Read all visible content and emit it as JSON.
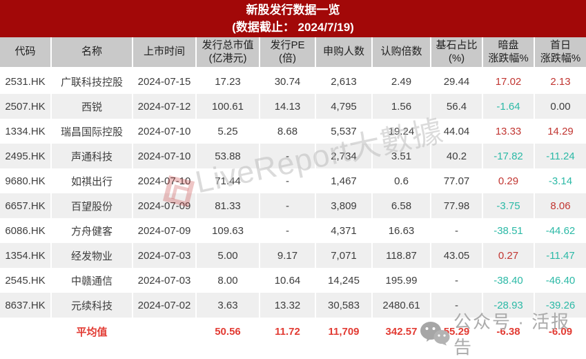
{
  "header": {
    "title": "新股发行数据一览",
    "subtitle": "(数据截止： 2024/7/19)"
  },
  "colors": {
    "accent": "#A20808",
    "positive_red": "#C13531",
    "negative_green": "#2BB9A6",
    "average_red": "#E23B33",
    "header_gray": "#C9C9C9",
    "alt_row_gray": "#EFEFEF"
  },
  "chart_data": {
    "type": "table",
    "title": "新股发行数据一览",
    "as_of": "2024/7/19",
    "columns": [
      {
        "key": "code",
        "label": "代码",
        "label2": ""
      },
      {
        "key": "name",
        "label": "名称",
        "label2": ""
      },
      {
        "key": "list_date",
        "label": "上市时间",
        "label2": ""
      },
      {
        "key": "market_cap",
        "label": "发行总市值",
        "label2": "(亿港元)"
      },
      {
        "key": "pe",
        "label": "发行PE",
        "label2": "(倍)"
      },
      {
        "key": "subscribers",
        "label": "申购人数",
        "label2": ""
      },
      {
        "key": "multiple",
        "label": "认购倍数",
        "label2": ""
      },
      {
        "key": "cornerstone",
        "label": "基石占比",
        "label2": "(%)"
      },
      {
        "key": "grey_market",
        "label": "暗盘",
        "label2": "涨跌幅%"
      },
      {
        "key": "first_day",
        "label": "首日",
        "label2": "涨跌幅%"
      }
    ],
    "rows": [
      {
        "cells": [
          "2531.HK",
          "广联科技控股",
          "2024-07-15",
          "17.23",
          "30.74",
          "2,613",
          "2.49",
          "29.44",
          "17.02",
          "2.13"
        ],
        "tone": [
          "",
          "",
          "",
          "",
          "",
          "",
          "",
          "",
          "pos",
          "pos"
        ]
      },
      {
        "cells": [
          "2507.HK",
          "西锐",
          "2024-07-12",
          "100.61",
          "14.13",
          "4,795",
          "1.56",
          "56.4",
          "-1.64",
          "0.00"
        ],
        "tone": [
          "",
          "",
          "",
          "",
          "",
          "",
          "",
          "",
          "neg",
          ""
        ]
      },
      {
        "cells": [
          "1334.HK",
          "瑞昌国际控股",
          "2024-07-10",
          "5.25",
          "8.68",
          "5,537",
          "19.24",
          "44.04",
          "13.33",
          "14.29"
        ],
        "tone": [
          "",
          "",
          "",
          "",
          "",
          "",
          "",
          "",
          "pos",
          "pos"
        ]
      },
      {
        "cells": [
          "2495.HK",
          "声通科技",
          "2024-07-10",
          "53.88",
          "-",
          "2,734",
          "3.51",
          "40.2",
          "-17.82",
          "-11.24"
        ],
        "tone": [
          "",
          "",
          "",
          "",
          "",
          "",
          "",
          "",
          "neg",
          "neg"
        ]
      },
      {
        "cells": [
          "9680.HK",
          "如祺出行",
          "2024-07-10",
          "71.44",
          "-",
          "1,467",
          "0.6",
          "77.07",
          "0.29",
          "-3.14"
        ],
        "tone": [
          "",
          "",
          "",
          "",
          "",
          "",
          "",
          "",
          "pos",
          "neg"
        ]
      },
      {
        "cells": [
          "6657.HK",
          "百望股份",
          "2024-07-09",
          "81.33",
          "-",
          "3,809",
          "6.58",
          "77.98",
          "-3.75",
          "8.06"
        ],
        "tone": [
          "",
          "",
          "",
          "",
          "",
          "",
          "",
          "",
          "neg",
          "pos"
        ]
      },
      {
        "cells": [
          "6086.HK",
          "方舟健客",
          "2024-07-09",
          "109.63",
          "-",
          "4,371",
          "16.63",
          "-",
          "-38.51",
          "-44.62"
        ],
        "tone": [
          "",
          "",
          "",
          "",
          "",
          "",
          "",
          "",
          "neg",
          "neg"
        ]
      },
      {
        "cells": [
          "1354.HK",
          "经发物业",
          "2024-07-03",
          "5.00",
          "9.17",
          "7,071",
          "118.87",
          "43.05",
          "0.27",
          "-11.47"
        ],
        "tone": [
          "",
          "",
          "",
          "",
          "",
          "",
          "",
          "",
          "pos",
          "neg"
        ]
      },
      {
        "cells": [
          "2545.HK",
          "中赣通信",
          "2024-07-03",
          "8.00",
          "10.64",
          "14,245",
          "195.99",
          "-",
          "-38.40",
          "-46.40"
        ],
        "tone": [
          "",
          "",
          "",
          "",
          "",
          "",
          "",
          "",
          "neg",
          "neg"
        ]
      },
      {
        "cells": [
          "8637.HK",
          "元续科技",
          "2024-07-02",
          "3.63",
          "13.32",
          "30,583",
          "2480.61",
          "-",
          "-28.93",
          "-39.26"
        ],
        "tone": [
          "",
          "",
          "",
          "",
          "",
          "",
          "",
          "",
          "neg",
          "neg"
        ]
      }
    ],
    "average": {
      "cells": [
        "",
        "平均值",
        "",
        "50.56",
        "11.72",
        "11,709",
        "342.57",
        "55.29",
        "-6.38",
        "-6.09"
      ]
    }
  },
  "watermarks": {
    "diagonal_text": "LiveReport大數據",
    "wechat_text": "公众号 · 活报告"
  }
}
